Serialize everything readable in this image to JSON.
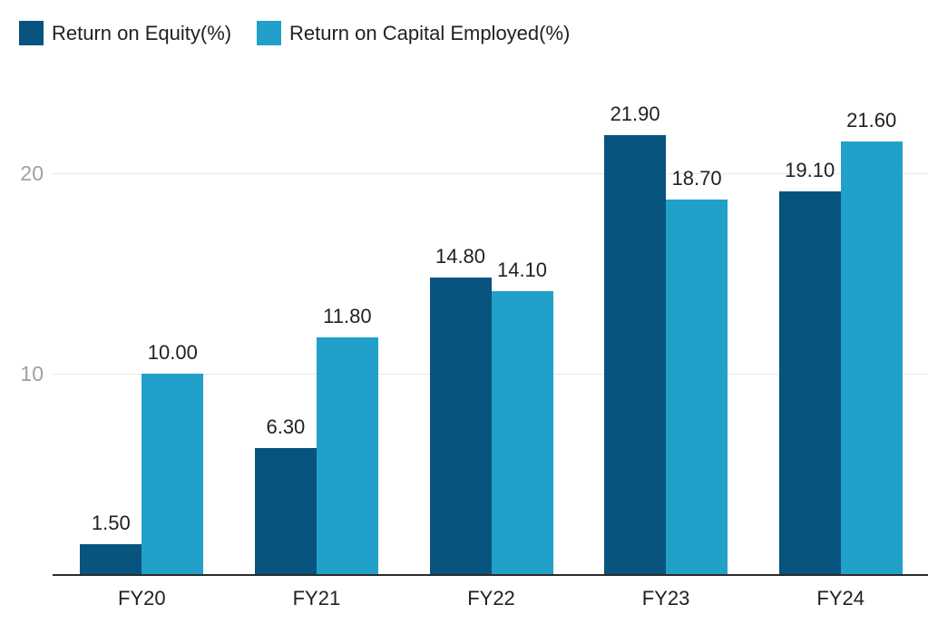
{
  "colors": {
    "roe": "#07547e",
    "roce": "#21a0c9",
    "grid": "#e7e7e7",
    "axis": "#2b2b2b",
    "tick_text": "#a0a0a0",
    "label_text": "#212121"
  },
  "legend": {
    "items": [
      {
        "label": "Return on Equity(%)",
        "color": "#07547e"
      },
      {
        "label": "Return on Capital Employed(%)",
        "color": "#21a0c9"
      }
    ]
  },
  "chart_data": {
    "type": "bar",
    "categories": [
      "FY20",
      "FY21",
      "FY22",
      "FY23",
      "FY24"
    ],
    "series": [
      {
        "name": "Return on Equity(%)",
        "color": "#07547e",
        "values": [
          1.5,
          6.3,
          14.8,
          21.9,
          19.1
        ],
        "labels": [
          "1.50",
          "6.30",
          "14.80",
          "21.90",
          "19.10"
        ]
      },
      {
        "name": "Return on Capital Employed(%)",
        "color": "#21a0c9",
        "values": [
          10.0,
          11.8,
          14.1,
          18.7,
          21.6
        ],
        "labels": [
          "10.00",
          "11.80",
          "14.10",
          "18.70",
          "21.60"
        ]
      }
    ],
    "title": "",
    "xlabel": "",
    "ylabel": "",
    "yticks": [
      10,
      20
    ],
    "ytick_labels": [
      "10",
      "20"
    ],
    "ylim": [
      0,
      26
    ],
    "grid": true,
    "legend_position": "top-left",
    "value_labels_shown": true
  }
}
